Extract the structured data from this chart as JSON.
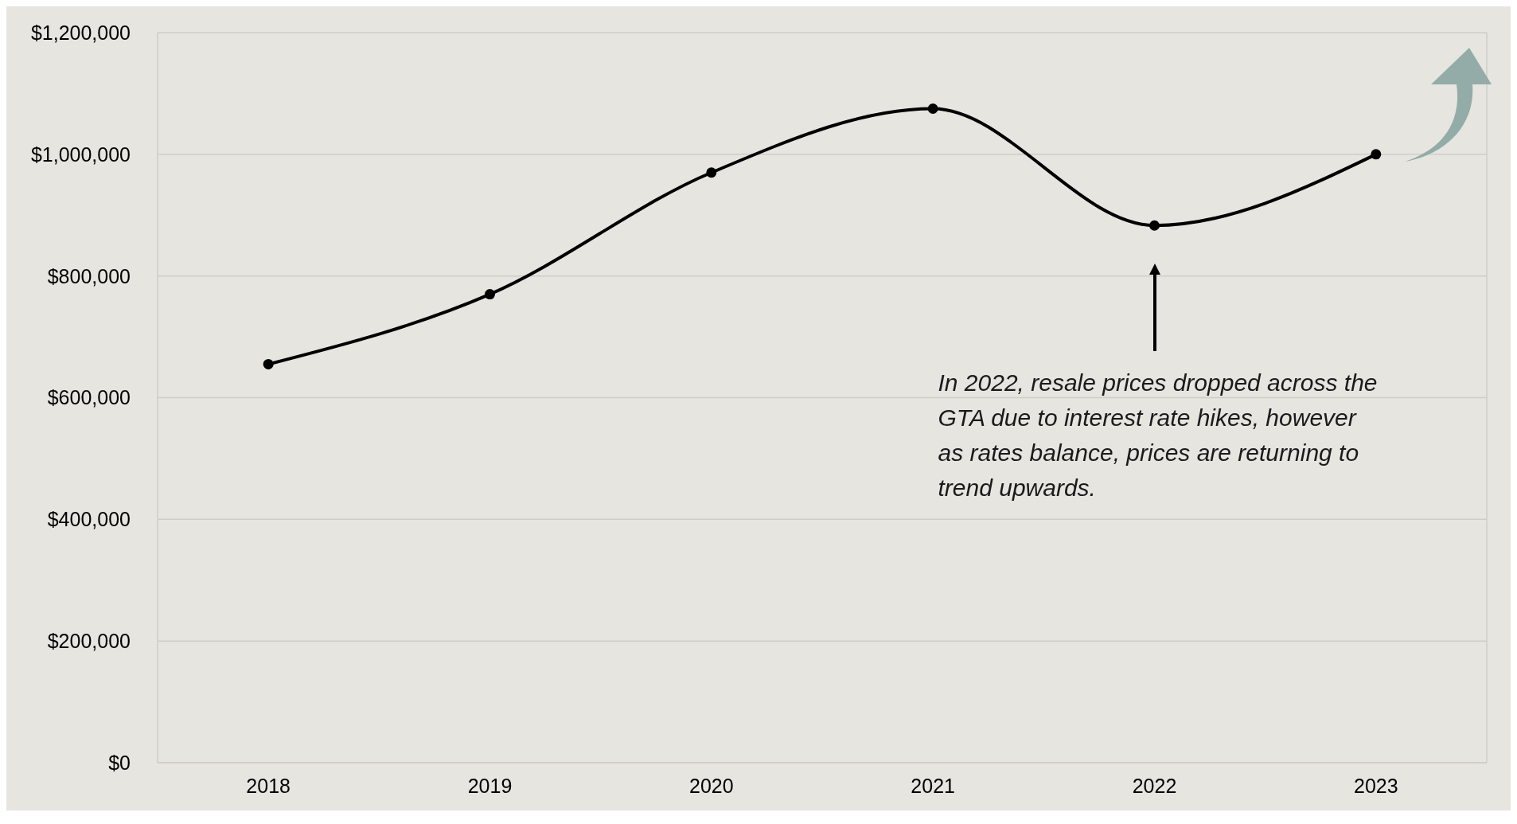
{
  "chart_data": {
    "type": "line",
    "categories": [
      "2018",
      "2019",
      "2020",
      "2021",
      "2022",
      "2023"
    ],
    "series": [
      {
        "color": "#000000",
        "values": [
          655000,
          770000,
          970000,
          1075000,
          883000,
          1000000
        ]
      }
    ],
    "ylim": [
      0,
      1200000
    ],
    "yticks": [
      {
        "value": 0,
        "label": "$0"
      },
      {
        "value": 200000,
        "label": "$200,000"
      },
      {
        "value": 400000,
        "label": "$400,000"
      },
      {
        "value": 600000,
        "label": "$600,000"
      },
      {
        "value": 800000,
        "label": "$800,000"
      },
      {
        "value": 1000000,
        "label": "$1,000,000"
      },
      {
        "value": 1200000,
        "label": "$1,200,000"
      }
    ],
    "grid": "y",
    "legend": false,
    "marker": "circle",
    "line_style": "solid",
    "annotations": [
      "In 2022, resale prices dropped across the GTA due to interest rate hikes, however as rates balance, prices are returning to trend upwards."
    ]
  }
}
